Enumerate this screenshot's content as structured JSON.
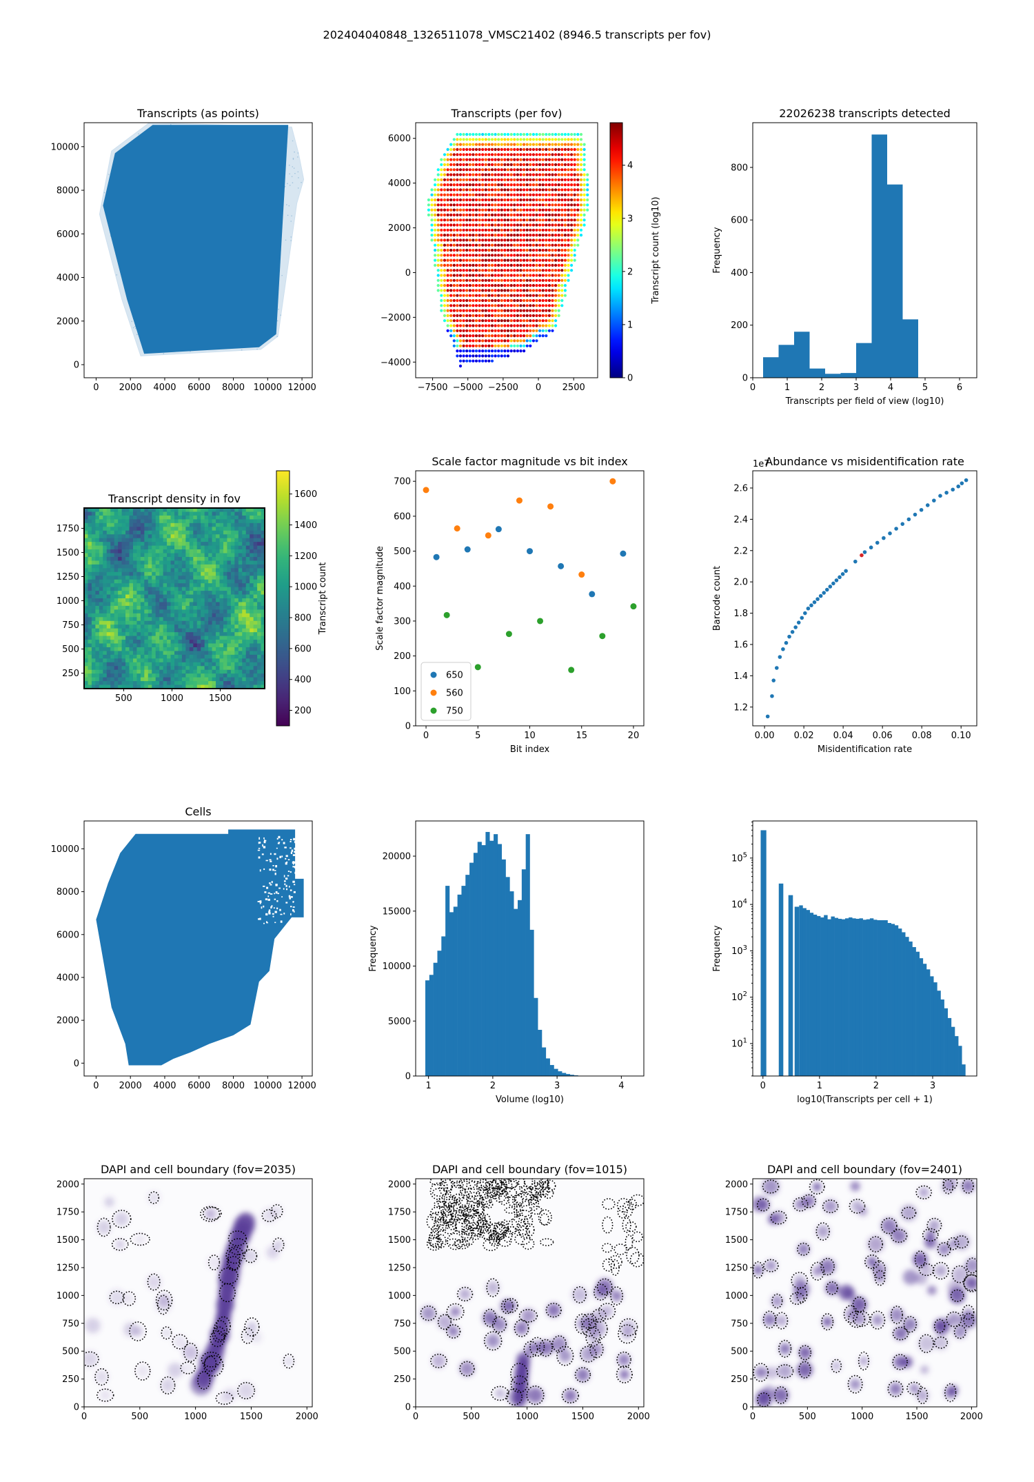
{
  "suptitle": "202404040848_1326511078_VMSC21402 (8946.5 transcripts per fov)",
  "chart_data": [
    {
      "id": "transcripts-points",
      "type": "scatter",
      "title": "Transcripts (as points)",
      "xlabel": "",
      "ylabel": "",
      "xlim": [
        -700,
        12600
      ],
      "ylim": [
        -600,
        11100
      ],
      "xticks": [
        0,
        2000,
        4000,
        6000,
        8000,
        10000,
        12000
      ],
      "yticks": [
        0,
        2000,
        4000,
        6000,
        8000,
        10000
      ],
      "color": "#1f77b4",
      "main_polygon": [
        [
          3300,
          11000
        ],
        [
          11200,
          11000
        ],
        [
          10500,
          1400
        ],
        [
          9500,
          800
        ],
        [
          2800,
          500
        ],
        [
          1800,
          3000
        ],
        [
          400,
          7300
        ],
        [
          1100,
          9700
        ]
      ],
      "faint_polygon": [
        [
          11400,
          10900
        ],
        [
          11800,
          9700
        ],
        [
          12100,
          8500
        ],
        [
          11700,
          7400
        ],
        [
          10600,
          1300
        ],
        [
          9600,
          700
        ],
        [
          2600,
          400
        ],
        [
          1500,
          3000
        ],
        [
          200,
          6900
        ],
        [
          900,
          9800
        ],
        [
          3100,
          11100
        ]
      ]
    },
    {
      "id": "transcripts-per-fov",
      "type": "scatter",
      "title": "Transcripts (per fov)",
      "xlabel": "",
      "ylabel": "",
      "xlim": [
        -8700,
        4200
      ],
      "ylim": [
        -4700,
        6700
      ],
      "xticks": [
        -7500,
        -5000,
        -2500,
        0,
        2500
      ],
      "yticks": [
        -4000,
        -2000,
        0,
        2000,
        4000,
        6000
      ],
      "grid_step": 225,
      "outline": [
        [
          -5800,
          6200
        ],
        [
          3200,
          6200
        ],
        [
          3700,
          3000
        ],
        [
          3500,
          2700
        ],
        [
          1300,
          -2500
        ],
        [
          -1000,
          -3500
        ],
        [
          -3500,
          -4000
        ],
        [
          -5600,
          -4200
        ],
        [
          -7000,
          -1500
        ],
        [
          -7600,
          1500
        ],
        [
          -7900,
          3000
        ],
        [
          -6800,
          5200
        ]
      ],
      "colorbar": {
        "label": "Transcript count (log10)",
        "min": 0,
        "max": 4.8,
        "ticks": [
          0,
          1,
          2,
          3,
          4
        ],
        "cmap": "jet"
      }
    },
    {
      "id": "transcripts-detected-hist",
      "type": "bar",
      "title": "22026238 transcripts detected",
      "xlabel": "Transcripts per field of view (log10)",
      "ylabel": "Frequency",
      "xlim": [
        0,
        6.5
      ],
      "ylim": [
        0,
        970
      ],
      "xticks": [
        0,
        1,
        2,
        3,
        4,
        5,
        6
      ],
      "yticks": [
        0,
        200,
        400,
        600,
        800
      ],
      "bin_edges": [
        0.3,
        0.75,
        1.2,
        1.65,
        2.1,
        2.55,
        3.0,
        3.45,
        3.9,
        4.35,
        4.8
      ],
      "values": [
        78,
        125,
        175,
        35,
        15,
        18,
        132,
        925,
        735,
        222
      ]
    },
    {
      "id": "transcript-density",
      "type": "heatmap",
      "title": "Transcript density in fov",
      "xlabel": "",
      "ylabel": "",
      "xlim": [
        90,
        1960
      ],
      "ylim": [
        90,
        1960
      ],
      "xticks": [
        500,
        1000,
        1500
      ],
      "yticks": [
        250,
        500,
        750,
        1000,
        1250,
        1500,
        1750
      ],
      "colorbar": {
        "label": "Transcript count",
        "min": 100,
        "max": 1750,
        "ticks": [
          200,
          400,
          600,
          800,
          1000,
          1200,
          1400,
          1600
        ],
        "cmap": "viridis"
      }
    },
    {
      "id": "scale-factor",
      "type": "scatter",
      "title": "Scale factor magnitude vs bit index",
      "xlabel": "Bit index",
      "ylabel": "Scale factor magnitude",
      "xlim": [
        -1,
        21
      ],
      "ylim": [
        0,
        730
      ],
      "xticks": [
        0,
        5,
        10,
        15,
        20
      ],
      "yticks": [
        0,
        100,
        200,
        300,
        400,
        500,
        600,
        700
      ],
      "legend": "lower-left",
      "series": [
        {
          "name": "650",
          "color": "#1f77b4",
          "x": [
            1,
            4,
            7,
            10,
            13,
            16,
            19
          ],
          "y": [
            483,
            505,
            563,
            500,
            457,
            377,
            493
          ]
        },
        {
          "name": "560",
          "color": "#ff7f0e",
          "x": [
            0,
            3,
            6,
            9,
            12,
            15,
            18
          ],
          "y": [
            675,
            565,
            545,
            645,
            628,
            433,
            700
          ]
        },
        {
          "name": "750",
          "color": "#2ca02c",
          "x": [
            2,
            5,
            8,
            11,
            14,
            17,
            20
          ],
          "y": [
            317,
            168,
            263,
            300,
            160,
            257,
            342
          ]
        }
      ]
    },
    {
      "id": "abundance-misid",
      "type": "scatter",
      "title": "Abundance vs misidentification rate",
      "xlabel": "Misidentification rate",
      "ylabel": "Barcode count",
      "offset_text": "1e7",
      "xlim": [
        -0.006,
        0.108
      ],
      "ylim": [
        1.08,
        2.71
      ],
      "xticks": [
        0.0,
        0.02,
        0.04,
        0.06,
        0.08,
        0.1
      ],
      "yticks": [
        1.2,
        1.4,
        1.6,
        1.8,
        2.0,
        2.2,
        2.4,
        2.6
      ],
      "highlight_index": 27,
      "x": [
        0.0016,
        0.0038,
        0.0046,
        0.0062,
        0.0078,
        0.0094,
        0.011,
        0.0126,
        0.0142,
        0.0158,
        0.0174,
        0.019,
        0.0206,
        0.0222,
        0.0238,
        0.0254,
        0.027,
        0.0286,
        0.0302,
        0.0318,
        0.0334,
        0.035,
        0.0366,
        0.0382,
        0.0398,
        0.0414,
        0.0462,
        0.0494,
        0.051,
        0.0542,
        0.0574,
        0.0606,
        0.0638,
        0.067,
        0.0702,
        0.0734,
        0.0766,
        0.0798,
        0.083,
        0.0862,
        0.0894,
        0.0926,
        0.0958,
        0.0986,
        0.1004,
        0.1026
      ],
      "y": [
        1.14,
        1.27,
        1.37,
        1.45,
        1.52,
        1.57,
        1.61,
        1.65,
        1.68,
        1.71,
        1.74,
        1.77,
        1.8,
        1.83,
        1.85,
        1.87,
        1.89,
        1.91,
        1.93,
        1.95,
        1.97,
        1.99,
        2.01,
        2.03,
        2.05,
        2.07,
        2.13,
        2.17,
        2.19,
        2.22,
        2.25,
        2.28,
        2.31,
        2.34,
        2.37,
        2.4,
        2.43,
        2.46,
        2.49,
        2.52,
        2.55,
        2.57,
        2.59,
        2.61,
        2.63,
        2.65
      ]
    },
    {
      "id": "cells",
      "type": "scatter",
      "title": "Cells",
      "xlabel": "",
      "ylabel": "",
      "xlim": [
        -700,
        12600
      ],
      "ylim": [
        -600,
        11300
      ],
      "xticks": [
        0,
        2000,
        4000,
        6000,
        8000,
        10000,
        12000
      ],
      "yticks": [
        0,
        2000,
        4000,
        6000,
        8000,
        10000
      ],
      "color": "#1f77b4",
      "polygon": [
        [
          2300,
          10700
        ],
        [
          7700,
          10700
        ],
        [
          7700,
          10900
        ],
        [
          11600,
          10900
        ],
        [
          11600,
          8600
        ],
        [
          12100,
          8600
        ],
        [
          12100,
          6800
        ],
        [
          11400,
          6800
        ],
        [
          10400,
          5800
        ],
        [
          10100,
          4300
        ],
        [
          9500,
          3800
        ],
        [
          9000,
          1800
        ],
        [
          8000,
          1300
        ],
        [
          6600,
          900
        ],
        [
          5500,
          500
        ],
        [
          4500,
          200
        ],
        [
          3800,
          -100
        ],
        [
          1900,
          -100
        ],
        [
          1700,
          900
        ],
        [
          900,
          2600
        ],
        [
          0,
          6700
        ],
        [
          700,
          8400
        ],
        [
          1400,
          9800
        ]
      ]
    },
    {
      "id": "volume-hist",
      "type": "bar",
      "title": "",
      "xlabel": "Volume (log10)",
      "ylabel": "Frequency",
      "xlim": [
        0.8,
        4.35
      ],
      "ylim": [
        0,
        23200
      ],
      "xticks": [
        1,
        2,
        3,
        4
      ],
      "yticks": [
        0,
        5000,
        10000,
        15000,
        20000
      ],
      "bin_start": 0.95,
      "bin_width": 0.0625,
      "values": [
        8700,
        9200,
        10300,
        11400,
        12700,
        17300,
        14900,
        15400,
        16500,
        17300,
        18300,
        19400,
        20300,
        21300,
        21000,
        22200,
        21400,
        22000,
        21100,
        19700,
        18100,
        16800,
        15200,
        16000,
        18800,
        22000,
        13300,
        7100,
        4200,
        2600,
        1600,
        1000,
        650,
        430,
        280,
        180,
        110,
        60,
        30,
        15
      ]
    },
    {
      "id": "transcripts-per-cell-hist",
      "type": "bar",
      "title": "",
      "xlabel": "log10(Transcripts per cell + 1)",
      "ylabel": "Frequency",
      "log_y": true,
      "xlim": [
        -0.18,
        3.78
      ],
      "ylim_exp": [
        0.3,
        5.8
      ],
      "xticks": [
        0,
        1,
        2,
        3
      ],
      "yticks_exp": [
        1,
        2,
        3,
        4,
        5
      ],
      "bars": [
        {
          "x0": -0.04,
          "x1": 0.06,
          "log": 5.6
        },
        {
          "x0": 0.28,
          "x1": 0.36,
          "log": 4.45
        },
        {
          "x0": 0.45,
          "x1": 0.53,
          "log": 4.2
        },
        {
          "x0": 0.56,
          "x1": 0.64,
          "log": 3.95
        }
      ],
      "bin_start": 0.64,
      "bin_width": 0.0625,
      "log_values": [
        3.98,
        3.92,
        3.88,
        3.82,
        3.78,
        3.75,
        3.72,
        3.77,
        3.68,
        3.74,
        3.71,
        3.69,
        3.68,
        3.7,
        3.72,
        3.7,
        3.69,
        3.7,
        3.67,
        3.68,
        3.7,
        3.67,
        3.66,
        3.66,
        3.66,
        3.6,
        3.58,
        3.55,
        3.48,
        3.4,
        3.3,
        3.2,
        3.08,
        2.98,
        2.84,
        2.72,
        2.6,
        2.45,
        2.32,
        2.14,
        1.95,
        1.76,
        1.55,
        1.36,
        1.16,
        0.95,
        0.55
      ]
    },
    {
      "id": "dapi-2035",
      "type": "scatter",
      "title": "DAPI and cell boundary (fov=2035)",
      "xlabel": "",
      "ylabel": "",
      "xlim": [
        0,
        2048
      ],
      "ylim": [
        0,
        2048
      ],
      "xticks": [
        0,
        500,
        1000,
        1500,
        2000
      ],
      "yticks": [
        0,
        250,
        500,
        750,
        1000,
        1250,
        1500,
        1750,
        2000
      ]
    },
    {
      "id": "dapi-1015",
      "type": "scatter",
      "title": "DAPI and cell boundary (fov=1015)",
      "xlabel": "",
      "ylabel": "",
      "xlim": [
        0,
        2048
      ],
      "ylim": [
        0,
        2048
      ],
      "xticks": [
        0,
        500,
        1000,
        1500,
        2000
      ],
      "yticks": [
        0,
        250,
        500,
        750,
        1000,
        1250,
        1500,
        1750,
        2000
      ]
    },
    {
      "id": "dapi-2401",
      "type": "scatter",
      "title": "DAPI and cell boundary (fov=2401)",
      "xlabel": "",
      "ylabel": "",
      "xlim": [
        0,
        2048
      ],
      "ylim": [
        0,
        2048
      ],
      "xticks": [
        0,
        500,
        1000,
        1500,
        2000
      ],
      "yticks": [
        0,
        250,
        500,
        750,
        1000,
        1250,
        1500,
        1750,
        2000
      ]
    }
  ]
}
